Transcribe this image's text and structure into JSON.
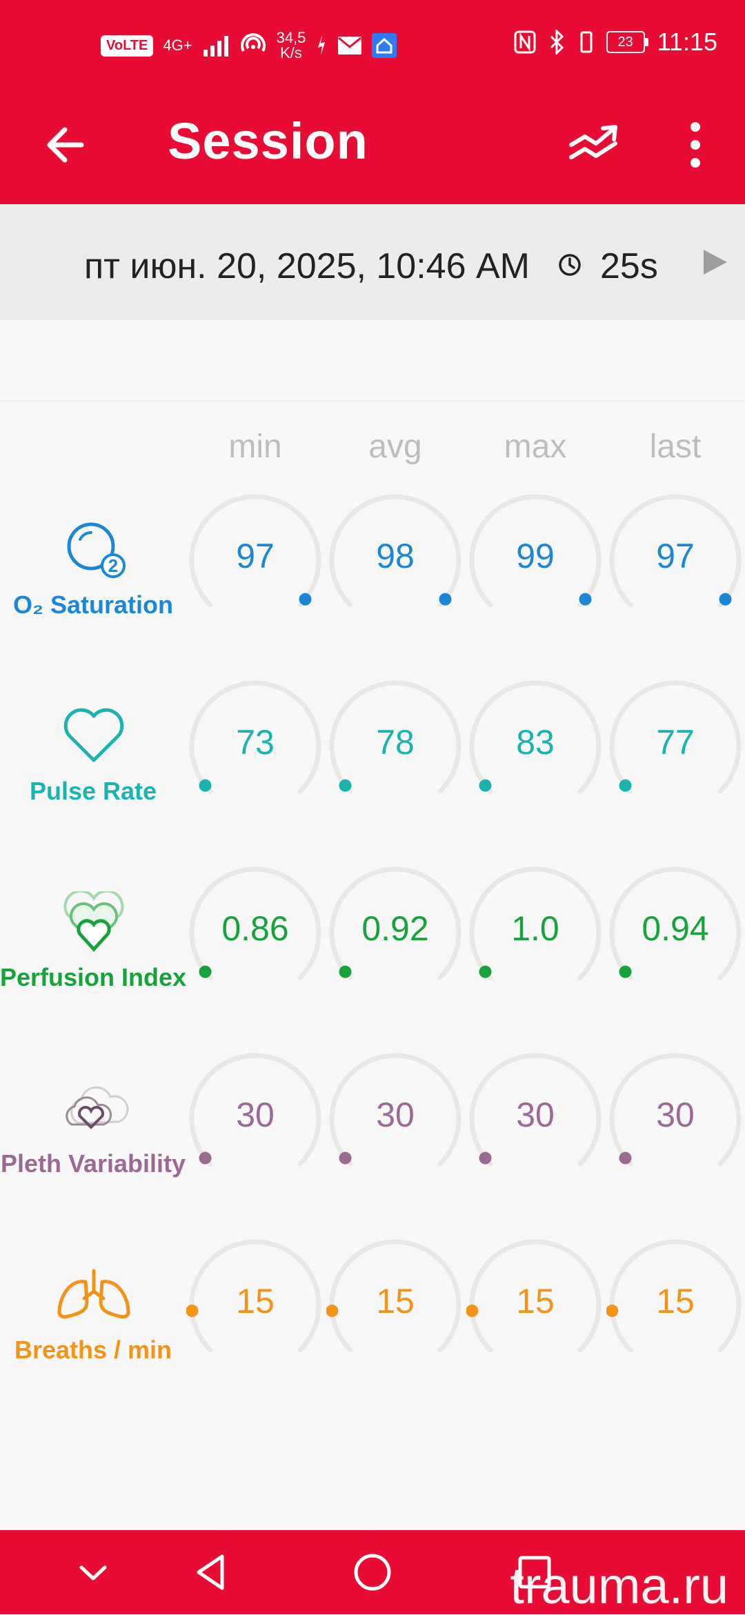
{
  "status_bar": {
    "time": "11:15",
    "speed": "34,5",
    "speed_unit": "K/s",
    "battery": "23",
    "volte": "VoLTE",
    "network": "4G+"
  },
  "app_bar": {
    "title": "Session"
  },
  "session": {
    "datetime": "пт июн. 20, 2025, 10:46 AM",
    "duration": "25s"
  },
  "columns": [
    "min",
    "avg",
    "max",
    "last"
  ],
  "colors": {
    "primary": "#e80c35",
    "o2": "#1b87d6",
    "pulse": "#1ab3b0",
    "perfusion": "#17a33b",
    "pleth": "#9b6a93",
    "breaths": "#f39419"
  },
  "metrics": [
    {
      "label": "O₂ Saturation",
      "icon": "o2-icon",
      "values": [
        "97",
        "98",
        "99",
        "97"
      ]
    },
    {
      "label": "Pulse Rate",
      "icon": "heart-icon",
      "values": [
        "73",
        "78",
        "83",
        "77"
      ]
    },
    {
      "label": "Perfusion Index",
      "icon": "perfusion-hearts-icon",
      "values": [
        "0.86",
        "0.92",
        "1.0",
        "0.94"
      ]
    },
    {
      "label": "Pleth Variability",
      "icon": "pleth-clouds-icon",
      "values": [
        "30",
        "30",
        "30",
        "30"
      ]
    },
    {
      "label": "Breaths / min",
      "icon": "lungs-icon",
      "values": [
        "15",
        "15",
        "15",
        "15"
      ]
    }
  ],
  "watermark": "trauma.ru"
}
